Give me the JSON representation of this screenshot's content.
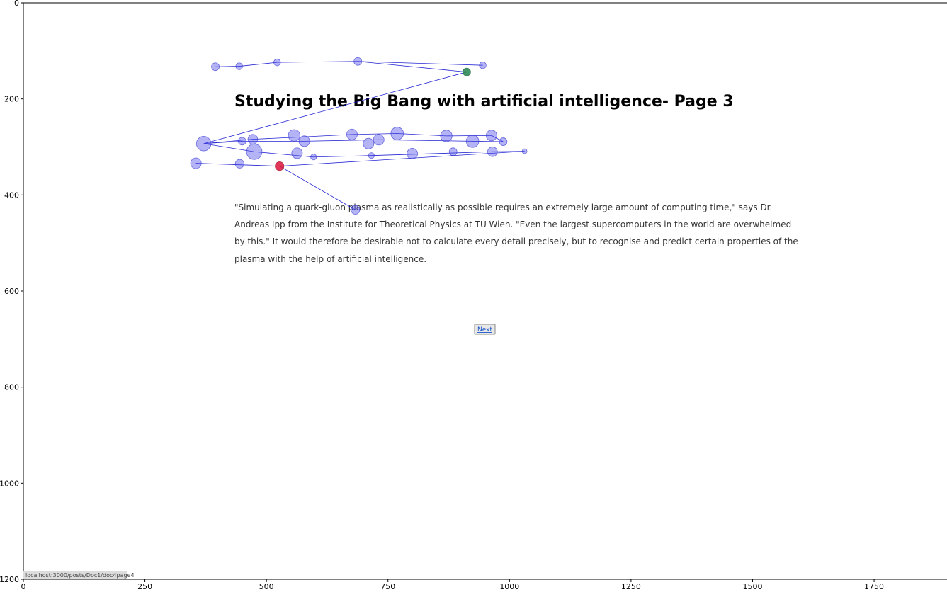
{
  "page": {
    "title": "Studying the Big Bang with artificial intelligence- Page 3",
    "paragraph_lines": [
      "\"Simulating a quark-gluon plasma as realistically as possible requires an extremely large amount of computing time,\" says Dr.",
      "Andreas Ipp from the Institute for Theoretical Physics at TU Wien. \"Even the largest supercomputers in the world are overwhelmed",
      "by this.\" It would therefore be desirable not to calculate every detail precisely, but to recognise and predict certain properties of the",
      "plasma with the help of artificial intelligence."
    ],
    "next_label": "Next",
    "status_url": "localhost:3000/posts/Doc1/doc4page4"
  },
  "colors": {
    "fixation": "#4b4bea",
    "path": "#0000cc",
    "start": "#2e8b57",
    "end": "#dc143c"
  },
  "chart_data": {
    "type": "scatter",
    "xlim": [
      0,
      1900
    ],
    "ylim": [
      1200,
      0
    ],
    "x_ticks": [
      0,
      250,
      500,
      750,
      1000,
      1250,
      1500,
      1750
    ],
    "y_ticks": [
      0,
      200,
      400,
      600,
      800,
      1000,
      1200
    ],
    "grid": false,
    "fixations": [
      {
        "x": 395,
        "y": 133,
        "r": 8,
        "role": "normal"
      },
      {
        "x": 444,
        "y": 132,
        "r": 7,
        "role": "normal"
      },
      {
        "x": 522,
        "y": 124,
        "r": 7,
        "role": "normal"
      },
      {
        "x": 688,
        "y": 122,
        "r": 8,
        "role": "normal"
      },
      {
        "x": 945,
        "y": 130,
        "r": 7,
        "role": "normal"
      },
      {
        "x": 912,
        "y": 144,
        "r": 8,
        "role": "start"
      },
      {
        "x": 371,
        "y": 293,
        "r": 15,
        "role": "normal"
      },
      {
        "x": 450,
        "y": 288,
        "r": 8,
        "role": "normal"
      },
      {
        "x": 472,
        "y": 284,
        "r": 10,
        "role": "normal"
      },
      {
        "x": 557,
        "y": 276,
        "r": 12,
        "role": "normal"
      },
      {
        "x": 578,
        "y": 288,
        "r": 11,
        "role": "normal"
      },
      {
        "x": 676,
        "y": 274,
        "r": 11,
        "role": "normal"
      },
      {
        "x": 710,
        "y": 293,
        "r": 11,
        "role": "normal"
      },
      {
        "x": 731,
        "y": 285,
        "r": 11,
        "role": "normal"
      },
      {
        "x": 769,
        "y": 272,
        "r": 13,
        "role": "normal"
      },
      {
        "x": 870,
        "y": 277,
        "r": 12,
        "role": "normal"
      },
      {
        "x": 924,
        "y": 288,
        "r": 13,
        "role": "normal"
      },
      {
        "x": 963,
        "y": 276,
        "r": 11,
        "role": "normal"
      },
      {
        "x": 987,
        "y": 289,
        "r": 8,
        "role": "normal"
      },
      {
        "x": 475,
        "y": 310,
        "r": 16,
        "role": "normal"
      },
      {
        "x": 563,
        "y": 313,
        "r": 11,
        "role": "normal"
      },
      {
        "x": 597,
        "y": 321,
        "r": 6,
        "role": "normal"
      },
      {
        "x": 716,
        "y": 318,
        "r": 6,
        "role": "normal"
      },
      {
        "x": 800,
        "y": 314,
        "r": 11,
        "role": "normal"
      },
      {
        "x": 884,
        "y": 310,
        "r": 8,
        "role": "normal"
      },
      {
        "x": 965,
        "y": 310,
        "r": 10,
        "role": "normal"
      },
      {
        "x": 1031,
        "y": 309,
        "r": 5,
        "role": "normal"
      },
      {
        "x": 355,
        "y": 334,
        "r": 11,
        "role": "normal"
      },
      {
        "x": 445,
        "y": 335,
        "r": 9,
        "role": "normal"
      },
      {
        "x": 683,
        "y": 431,
        "r": 9,
        "role": "normal"
      },
      {
        "x": 527,
        "y": 340,
        "r": 9,
        "role": "end"
      }
    ],
    "path": [
      [
        395,
        133
      ],
      [
        444,
        132
      ],
      [
        522,
        124
      ],
      [
        688,
        122
      ],
      [
        945,
        130
      ],
      [
        688,
        122
      ],
      [
        912,
        144
      ],
      [
        371,
        293
      ],
      [
        472,
        284
      ],
      [
        676,
        274
      ],
      [
        769,
        272
      ],
      [
        870,
        277
      ],
      [
        963,
        276
      ],
      [
        987,
        289
      ],
      [
        731,
        285
      ],
      [
        578,
        288
      ],
      [
        450,
        288
      ],
      [
        371,
        293
      ],
      [
        475,
        310
      ],
      [
        597,
        321
      ],
      [
        716,
        318
      ],
      [
        965,
        310
      ],
      [
        1031,
        309
      ],
      [
        527,
        340
      ],
      [
        355,
        334
      ],
      [
        527,
        340
      ],
      [
        683,
        431
      ],
      [
        527,
        340
      ]
    ]
  }
}
